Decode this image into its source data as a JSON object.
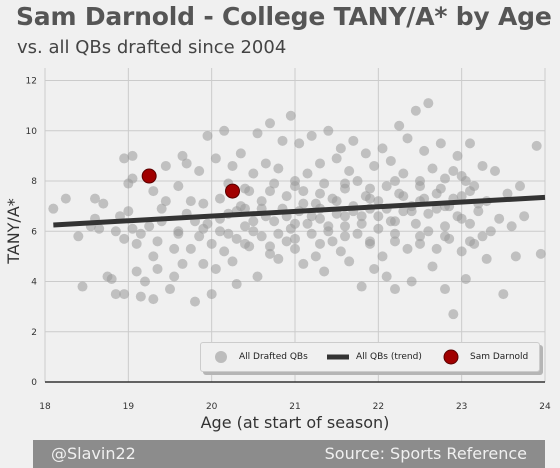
{
  "header": {
    "title": "Sam Darnold - College TANY/A* by Age",
    "subtitle": "vs. all QBs drafted since 2004"
  },
  "footer": {
    "left": "@Slavin22",
    "right": "Source: Sports Reference"
  },
  "legend": {
    "all": "All Drafted QBs",
    "trend": "All QBs (trend)",
    "darnold": "Sam Darnold"
  },
  "colors": {
    "scatter": "#999999",
    "trend": "#333333",
    "highlight": "#a00000",
    "grid": "#cbcbcb",
    "background": "#f0f0f0"
  },
  "chart_data": {
    "type": "scatter",
    "xlabel": "Age (at start of season)",
    "ylabel": "TANY/A*",
    "xlim": [
      18,
      24
    ],
    "ylim": [
      0,
      12.5
    ],
    "xticks": [
      18,
      19,
      20,
      21,
      22,
      23,
      24
    ],
    "yticks": [
      0,
      2,
      4,
      6,
      8,
      10,
      12
    ],
    "grid": true,
    "legend_position": "lower-right",
    "series": [
      {
        "name": "All Drafted QBs",
        "kind": "scatter",
        "points": [
          [
            18.1,
            6.9
          ],
          [
            18.25,
            7.3
          ],
          [
            18.4,
            5.8
          ],
          [
            18.45,
            3.8
          ],
          [
            18.55,
            6.2
          ],
          [
            18.6,
            6.5
          ],
          [
            18.65,
            6.1
          ],
          [
            18.6,
            7.3
          ],
          [
            18.7,
            7.1
          ],
          [
            18.75,
            4.2
          ],
          [
            18.8,
            4.1
          ],
          [
            18.85,
            3.5
          ],
          [
            18.85,
            6.0
          ],
          [
            18.95,
            3.5
          ],
          [
            18.95,
            5.7
          ],
          [
            18.9,
            6.6
          ],
          [
            18.95,
            8.9
          ],
          [
            19.0,
            7.9
          ],
          [
            19.05,
            9.0
          ],
          [
            19.05,
            8.1
          ],
          [
            19.0,
            6.8
          ],
          [
            19.05,
            6.1
          ],
          [
            19.1,
            5.5
          ],
          [
            19.1,
            4.4
          ],
          [
            19.15,
            5.9
          ],
          [
            19.15,
            3.4
          ],
          [
            19.2,
            4.0
          ],
          [
            19.25,
            6.2
          ],
          [
            19.3,
            7.6
          ],
          [
            19.3,
            5.0
          ],
          [
            19.3,
            3.3
          ],
          [
            19.35,
            4.5
          ],
          [
            19.35,
            5.6
          ],
          [
            19.4,
            6.9
          ],
          [
            19.45,
            7.2
          ],
          [
            19.45,
            8.6
          ],
          [
            19.5,
            3.7
          ],
          [
            19.55,
            4.2
          ],
          [
            19.55,
            5.3
          ],
          [
            19.6,
            6.0
          ],
          [
            19.6,
            7.8
          ],
          [
            19.65,
            4.7
          ],
          [
            19.65,
            9.0
          ],
          [
            19.7,
            6.7
          ],
          [
            19.7,
            8.7
          ],
          [
            19.75,
            5.3
          ],
          [
            19.75,
            7.2
          ],
          [
            19.8,
            3.2
          ],
          [
            19.8,
            6.4
          ],
          [
            19.85,
            5.8
          ],
          [
            19.85,
            8.4
          ],
          [
            19.9,
            4.7
          ],
          [
            19.9,
            7.1
          ],
          [
            19.95,
            6.3
          ],
          [
            19.95,
            9.8
          ],
          [
            20.0,
            5.5
          ],
          [
            20.0,
            3.5
          ],
          [
            20.05,
            4.5
          ],
          [
            20.05,
            8.9
          ],
          [
            20.1,
            6.5
          ],
          [
            20.1,
            7.3
          ],
          [
            20.15,
            5.2
          ],
          [
            20.15,
            10.0
          ],
          [
            20.2,
            7.9
          ],
          [
            20.2,
            6.7
          ],
          [
            20.25,
            8.6
          ],
          [
            20.25,
            4.8
          ],
          [
            20.3,
            5.7
          ],
          [
            20.3,
            3.9
          ],
          [
            20.35,
            7.0
          ],
          [
            20.35,
            9.1
          ],
          [
            20.4,
            6.2
          ],
          [
            20.4,
            6.9
          ],
          [
            20.45,
            5.4
          ],
          [
            20.45,
            7.6
          ],
          [
            20.5,
            8.3
          ],
          [
            20.5,
            6.0
          ],
          [
            20.55,
            4.2
          ],
          [
            20.55,
            9.9
          ],
          [
            20.6,
            5.8
          ],
          [
            20.6,
            7.2
          ],
          [
            20.65,
            6.6
          ],
          [
            20.65,
            8.7
          ],
          [
            20.7,
            5.1
          ],
          [
            20.7,
            10.3
          ],
          [
            20.75,
            6.4
          ],
          [
            20.75,
            7.9
          ],
          [
            20.8,
            4.9
          ],
          [
            20.8,
            8.5
          ],
          [
            20.85,
            6.9
          ],
          [
            20.85,
            9.6
          ],
          [
            20.9,
            5.6
          ],
          [
            20.9,
            7.4
          ],
          [
            20.95,
            6.1
          ],
          [
            20.95,
            10.6
          ],
          [
            21.0,
            8.0
          ],
          [
            21.0,
            5.3
          ],
          [
            21.05,
            6.8
          ],
          [
            21.05,
            9.5
          ],
          [
            21.1,
            4.7
          ],
          [
            21.1,
            7.6
          ],
          [
            21.15,
            6.3
          ],
          [
            21.15,
            8.3
          ],
          [
            21.2,
            5.9
          ],
          [
            21.2,
            9.8
          ],
          [
            21.25,
            7.1
          ],
          [
            21.25,
            5.0
          ],
          [
            21.3,
            8.7
          ],
          [
            21.3,
            6.5
          ],
          [
            21.35,
            4.4
          ],
          [
            21.35,
            7.9
          ],
          [
            21.4,
            10.0
          ],
          [
            21.4,
            6.0
          ],
          [
            21.45,
            7.3
          ],
          [
            21.45,
            5.6
          ],
          [
            21.5,
            8.9
          ],
          [
            21.5,
            6.7
          ],
          [
            21.55,
            9.3
          ],
          [
            21.55,
            5.2
          ],
          [
            21.6,
            7.7
          ],
          [
            21.6,
            6.2
          ],
          [
            21.65,
            8.4
          ],
          [
            21.65,
            4.8
          ],
          [
            21.7,
            7.0
          ],
          [
            21.7,
            9.6
          ],
          [
            21.75,
            5.9
          ],
          [
            21.75,
            8.0
          ],
          [
            21.8,
            6.6
          ],
          [
            21.8,
            3.8
          ],
          [
            21.85,
            7.4
          ],
          [
            21.85,
            9.1
          ],
          [
            21.9,
            5.5
          ],
          [
            21.9,
            6.9
          ],
          [
            21.95,
            8.6
          ],
          [
            21.95,
            4.5
          ],
          [
            22.0,
            7.2
          ],
          [
            22.0,
            6.1
          ],
          [
            22.05,
            9.3
          ],
          [
            22.05,
            5.0
          ],
          [
            22.1,
            7.8
          ],
          [
            22.1,
            4.2
          ],
          [
            22.15,
            8.8
          ],
          [
            22.15,
            6.4
          ],
          [
            22.2,
            3.7
          ],
          [
            22.2,
            5.6
          ],
          [
            22.25,
            7.5
          ],
          [
            22.25,
            10.2
          ],
          [
            22.3,
            6.8
          ],
          [
            22.3,
            8.3
          ],
          [
            22.35,
            5.3
          ],
          [
            22.35,
            9.7
          ],
          [
            22.4,
            7.0
          ],
          [
            22.4,
            4.0
          ],
          [
            22.45,
            6.3
          ],
          [
            22.45,
            10.8
          ],
          [
            22.5,
            8.0
          ],
          [
            22.5,
            5.8
          ],
          [
            22.55,
            7.3
          ],
          [
            22.55,
            9.2
          ],
          [
            22.6,
            6.0
          ],
          [
            22.6,
            11.1
          ],
          [
            22.65,
            4.6
          ],
          [
            22.65,
            8.5
          ],
          [
            22.7,
            6.9
          ],
          [
            22.7,
            5.3
          ],
          [
            22.75,
            7.7
          ],
          [
            22.75,
            9.5
          ],
          [
            22.8,
            6.2
          ],
          [
            22.8,
            3.7
          ],
          [
            22.85,
            7.0
          ],
          [
            22.85,
            5.7
          ],
          [
            22.9,
            8.4
          ],
          [
            22.9,
            2.7
          ],
          [
            22.95,
            6.6
          ],
          [
            22.95,
            9.0
          ],
          [
            23.0,
            5.2
          ],
          [
            23.0,
            7.4
          ],
          [
            23.05,
            4.1
          ],
          [
            23.05,
            8.0
          ],
          [
            23.1,
            6.3
          ],
          [
            23.1,
            9.5
          ],
          [
            23.15,
            5.5
          ],
          [
            23.15,
            7.8
          ],
          [
            23.2,
            6.8
          ],
          [
            23.25,
            8.6
          ],
          [
            23.25,
            5.8
          ],
          [
            23.3,
            4.9
          ],
          [
            23.3,
            7.2
          ],
          [
            23.35,
            6.0
          ],
          [
            23.4,
            8.4
          ],
          [
            23.45,
            6.5
          ],
          [
            23.5,
            3.5
          ],
          [
            23.55,
            7.5
          ],
          [
            23.6,
            6.2
          ],
          [
            23.65,
            5.0
          ],
          [
            23.7,
            7.8
          ],
          [
            23.75,
            6.6
          ],
          [
            23.9,
            9.4
          ],
          [
            23.95,
            5.1
          ],
          [
            19.4,
            6.4
          ],
          [
            19.6,
            5.9
          ],
          [
            19.9,
            6.1
          ],
          [
            20.2,
            5.9
          ],
          [
            20.5,
            6.4
          ],
          [
            20.8,
            5.9
          ],
          [
            21.0,
            6.3
          ],
          [
            21.2,
            6.6
          ],
          [
            21.4,
            6.2
          ],
          [
            21.6,
            6.6
          ],
          [
            21.8,
            6.3
          ],
          [
            22.0,
            6.6
          ],
          [
            22.2,
            6.4
          ],
          [
            22.4,
            6.8
          ],
          [
            22.6,
            6.7
          ],
          [
            22.8,
            7.0
          ],
          [
            23.0,
            6.5
          ],
          [
            23.2,
            7.1
          ],
          [
            20.3,
            6.8
          ],
          [
            20.6,
            6.9
          ],
          [
            20.9,
            6.6
          ],
          [
            21.1,
            7.1
          ],
          [
            21.3,
            6.9
          ],
          [
            21.5,
            7.2
          ],
          [
            21.7,
            6.8
          ],
          [
            21.9,
            7.3
          ],
          [
            22.1,
            6.9
          ],
          [
            22.3,
            7.4
          ],
          [
            22.5,
            7.2
          ],
          [
            22.7,
            7.5
          ],
          [
            22.9,
            7.3
          ],
          [
            23.1,
            7.6
          ],
          [
            20.4,
            5.5
          ],
          [
            20.7,
            5.4
          ],
          [
            21.0,
            5.7
          ],
          [
            21.3,
            5.5
          ],
          [
            21.6,
            5.8
          ],
          [
            21.9,
            5.6
          ],
          [
            22.2,
            5.9
          ],
          [
            22.5,
            5.5
          ],
          [
            22.8,
            5.8
          ],
          [
            23.1,
            5.6
          ],
          [
            20.1,
            6.0
          ],
          [
            20.4,
            7.7
          ],
          [
            20.7,
            7.6
          ],
          [
            21.0,
            7.8
          ],
          [
            21.3,
            7.5
          ],
          [
            21.6,
            7.9
          ],
          [
            21.9,
            7.7
          ],
          [
            22.2,
            8.0
          ],
          [
            22.5,
            7.8
          ],
          [
            22.8,
            8.1
          ],
          [
            23.0,
            8.2
          ]
        ]
      },
      {
        "name": "All QBs (trend)",
        "kind": "line",
        "x": [
          18.1,
          24.0
        ],
        "y": [
          6.25,
          7.35
        ]
      },
      {
        "name": "Sam Darnold",
        "kind": "scatter-highlight",
        "points": [
          [
            19.25,
            8.2
          ],
          [
            20.25,
            7.6
          ]
        ]
      }
    ]
  }
}
